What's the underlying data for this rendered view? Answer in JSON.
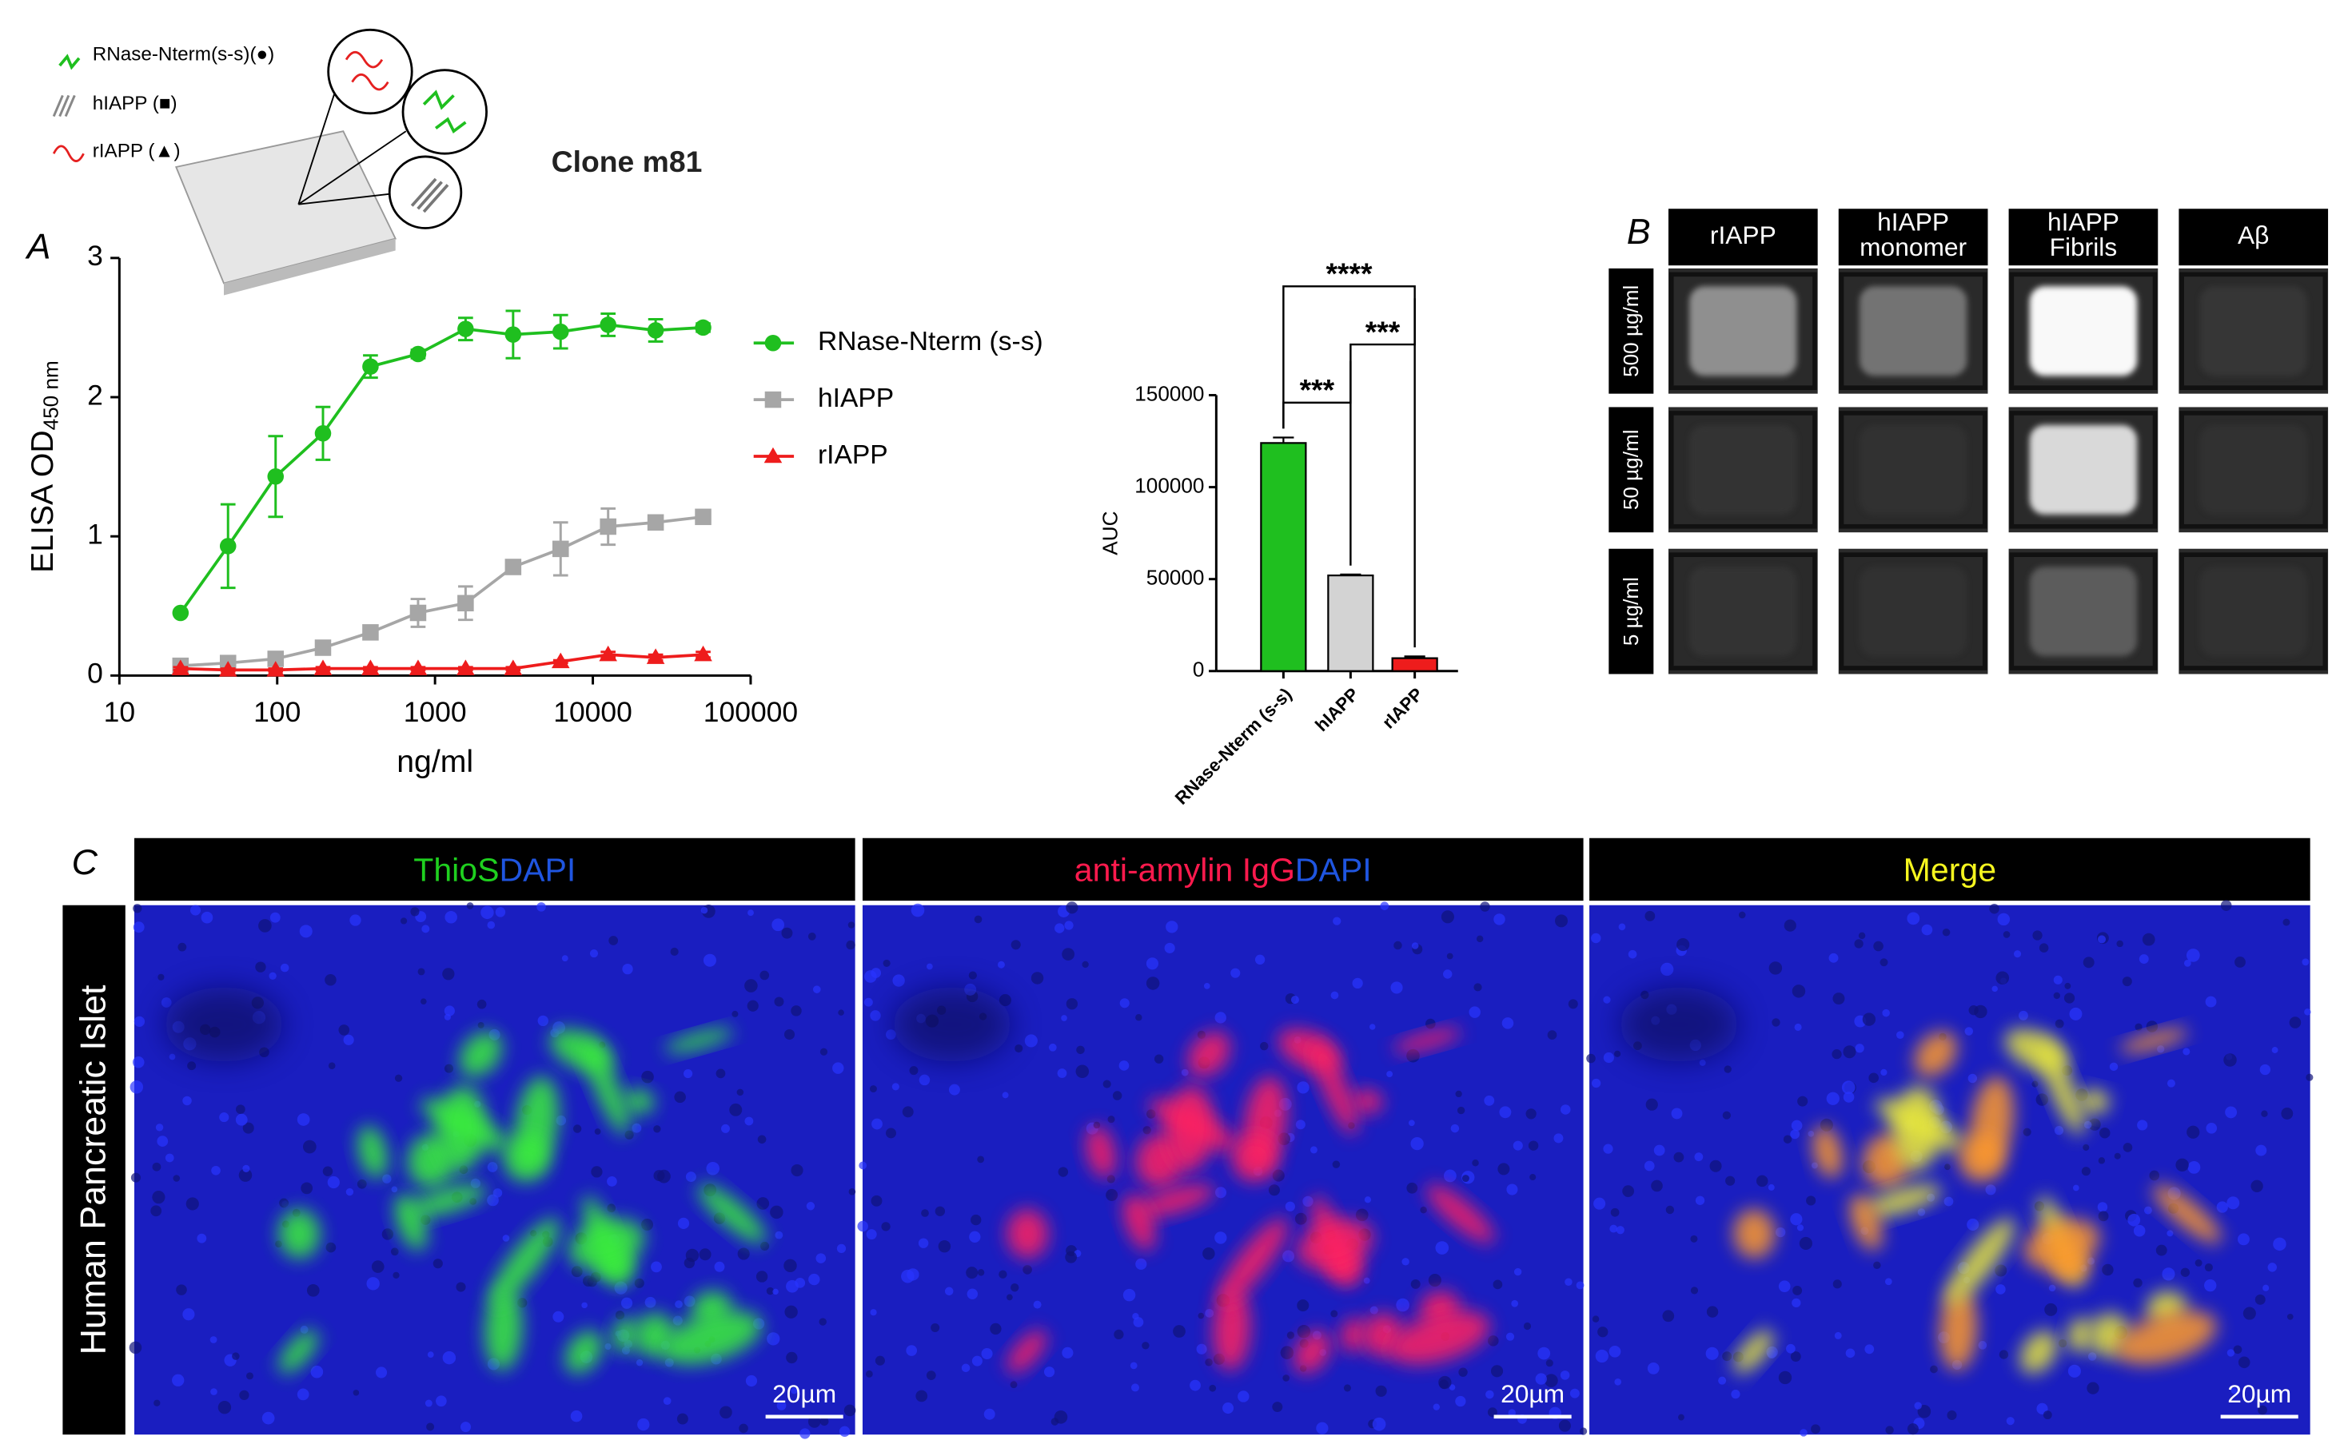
{
  "panel_labels": [
    "A",
    "B",
    "C"
  ],
  "schematic": {
    "title": "Clone m81",
    "items": [
      "RNase-Nterm(s-s)(●)",
      "hIAPP (■)",
      "rIAPP (▲)"
    ]
  },
  "chart_data": [
    {
      "type": "line",
      "x_scale": "log",
      "x_label": "ng/ml",
      "y_label": [
        "ELISA OD",
        "450 nm"
      ],
      "x": [
        24.4,
        48.8,
        97.7,
        195,
        390,
        781,
        1562,
        3125,
        6250,
        12500,
        25000,
        50000
      ],
      "xlim": [
        10,
        100000
      ],
      "xticks": [
        10,
        100,
        1000,
        10000,
        100000
      ],
      "ylim": [
        0,
        3
      ],
      "yticks": [
        0,
        1,
        2,
        3
      ],
      "series": [
        {
          "name": "RNase-Nterm (s-s)",
          "color": "#1fbf1f",
          "marker": "circle",
          "values": [
            0.45,
            0.93,
            1.43,
            1.74,
            2.22,
            2.31,
            2.49,
            2.45,
            2.47,
            2.52,
            2.48,
            2.5
          ],
          "errors": [
            0,
            0.3,
            0.29,
            0.19,
            0.08,
            0.03,
            0.08,
            0.17,
            0.12,
            0.08,
            0.08,
            0.03
          ]
        },
        {
          "name": "hIAPP",
          "color": "#a6a6a6",
          "marker": "square",
          "values": [
            0.07,
            0.09,
            0.12,
            0.2,
            0.31,
            0.45,
            0.52,
            0.78,
            0.91,
            1.07,
            1.1,
            1.14
          ],
          "errors": [
            0.02,
            0.02,
            0.02,
            0.02,
            0.03,
            0.1,
            0.12,
            0.03,
            0.19,
            0.13,
            0.03,
            0.03
          ]
        },
        {
          "name": "rIAPP",
          "color": "#ee1c1c",
          "marker": "triangle",
          "values": [
            0.05,
            0.04,
            0.04,
            0.05,
            0.05,
            0.05,
            0.05,
            0.05,
            0.1,
            0.15,
            0.13,
            0.15
          ],
          "errors": [
            0.01,
            0.01,
            0.01,
            0.01,
            0.01,
            0.01,
            0.01,
            0.01,
            0.01,
            0.02,
            0.02,
            0.02
          ]
        }
      ]
    },
    {
      "type": "bar",
      "y_label": "AUC",
      "categories": [
        "RNase-Nterm (s-s)",
        "hIAPP",
        "rIAPP"
      ],
      "values": [
        124000,
        52000,
        7000
      ],
      "errors": [
        3000,
        500,
        1000
      ],
      "colors": [
        "#1fbf1f",
        "#d3d3d3",
        "#ee1c1c"
      ],
      "ylim": [
        0,
        150000
      ],
      "yticks": [
        0,
        50000,
        100000,
        150000
      ],
      "significance": [
        {
          "label": "***"
        },
        {
          "label": "***"
        },
        {
          "label": "****"
        }
      ]
    }
  ],
  "panel_b": {
    "columns": [
      [
        "rIAPP"
      ],
      [
        "hIAPP",
        "monomer"
      ],
      [
        "hIAPP",
        "Fibrils"
      ],
      [
        "Aβ"
      ]
    ],
    "rows": [
      "500 µg/ml",
      "50 µg/ml",
      "5 µg/ml"
    ]
  },
  "panel_c": {
    "headers": [
      [
        "ThioS",
        "DAPI"
      ],
      [
        "anti-amylin IgG",
        "DAPI"
      ],
      [
        "Merge"
      ]
    ],
    "row_label": "Human Pancreatic Islet",
    "scale_bars": [
      "20µm",
      "20µm",
      "20µm"
    ]
  }
}
